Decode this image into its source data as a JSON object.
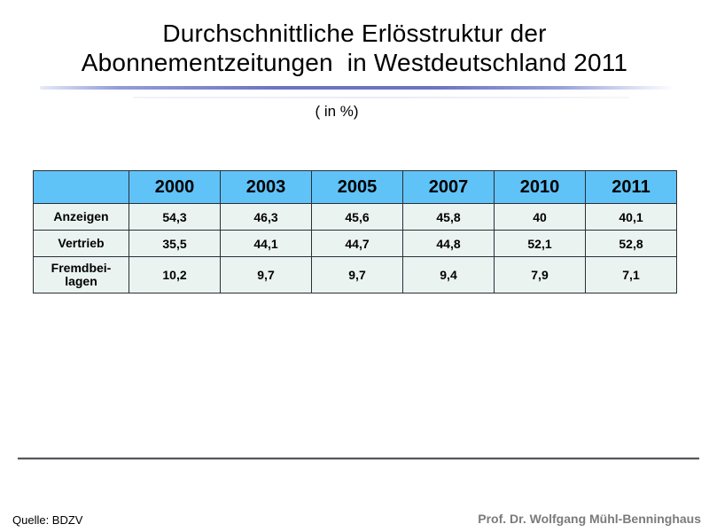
{
  "slide": {
    "title_line1": "Durchschnittliche Erlösstruktur der",
    "title_line2": "Abonnementzeitungen  in Westdeutschland 2011",
    "subtitle": "( in %)",
    "source_label": "Quelle: BDZV",
    "author": "Prof. Dr. Wolfgang Mühl-Benninghaus"
  },
  "colors": {
    "table_header_bg": "#5fc3f8",
    "table_cell_bg": "#ebf3f1",
    "table_border": "#2d2d36",
    "accent_line": "#6a74c1",
    "divider": "#58585c",
    "author_text": "#7b7b7d"
  },
  "chart_data": {
    "type": "table",
    "title": "Durchschnittliche Erlösstruktur der Abonnementzeitungen in Westdeutschland 2011 ( in %)",
    "columns": [
      "2000",
      "2003",
      "2005",
      "2007",
      "2010",
      "2011"
    ],
    "rows": [
      {
        "label": "Anzeigen",
        "values": [
          "54,3",
          "46,3",
          "45,6",
          "45,8",
          "40",
          "40,1"
        ]
      },
      {
        "label": "Vertrieb",
        "values": [
          "35,5",
          "44,1",
          "44,7",
          "44,8",
          "52,1",
          "52,8"
        ]
      },
      {
        "label": "Fremdbei-\nlagen",
        "values": [
          "10,2",
          "9,7",
          "9,7",
          "9,4",
          "7,9",
          "7,1"
        ]
      }
    ]
  }
}
